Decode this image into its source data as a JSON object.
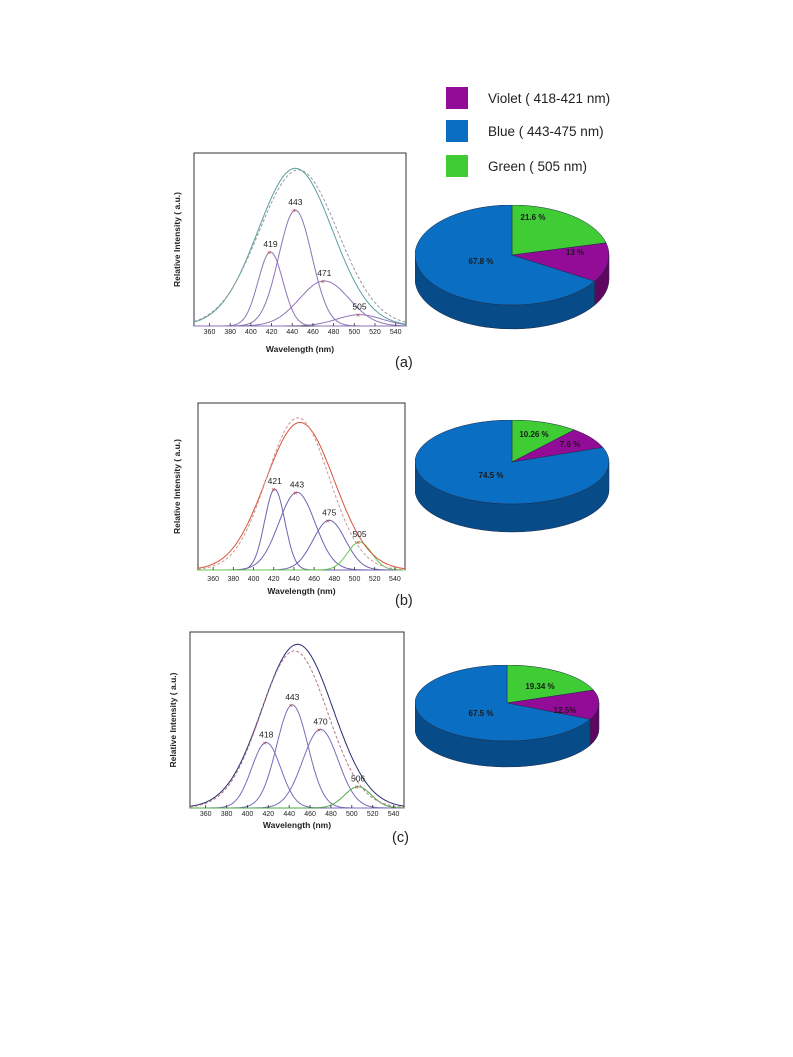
{
  "legend": [
    {
      "label": "Violet ( 418-421 nm)",
      "color": "#930c97"
    },
    {
      "label": "Blue ( 443-475  nm)",
      "color": "#0a6ec3"
    },
    {
      "label": "Green ( 505 nm)",
      "color": "#3fcc35"
    }
  ],
  "panels": [
    {
      "label": "(a)"
    },
    {
      "label": "(b)"
    },
    {
      "label": "(c)"
    }
  ],
  "chart_data": [
    {
      "type": "line",
      "panel": "(a)",
      "xlabel": "Wavelength (nm)",
      "ylabel": "Relative Intensity ( a.u.)",
      "xlim": [
        345,
        550
      ],
      "ylim": [
        0,
        1.0
      ],
      "xticks": [
        "360",
        "380",
        "400",
        "420",
        "440",
        "460",
        "480",
        "500",
        "520",
        "540"
      ],
      "grid": false,
      "peak_labels": [
        "419",
        "443",
        "471",
        "505"
      ],
      "series": [
        {
          "color": "#8c75b8",
          "style": "solid",
          "peaks": [
            {
              "center": 419,
              "height": 0.46,
              "width": 12
            },
            {
              "center": 443,
              "height": 0.72,
              "width": 16
            },
            {
              "center": 471,
              "height": 0.28,
              "width": 24
            },
            {
              "center": 505,
              "height": 0.07,
              "width": 22
            }
          ]
        },
        {
          "color": "#5b9ea3",
          "style": "solid",
          "peaks": [
            {
              "center": 443,
              "height": 0.98,
              "width": 36
            }
          ]
        },
        {
          "color": "#9a9a9a",
          "style": "dashed",
          "peaks": [
            {
              "center": 446,
              "height": 0.97,
              "width": 38
            }
          ]
        }
      ]
    },
    {
      "type": "line",
      "panel": "(b)",
      "xlabel": "Wavelength (nm)",
      "ylabel": "Relative Intensity ( a.u.)",
      "xlim": [
        345,
        550
      ],
      "ylim": [
        0,
        1.0
      ],
      "xticks": [
        "360",
        "380",
        "400",
        "420",
        "440",
        "460",
        "480",
        "500",
        "520",
        "540"
      ],
      "grid": false,
      "peak_labels": [
        "421",
        "443",
        "475",
        "505"
      ],
      "series": [
        {
          "color": "#6f62b0",
          "style": "solid",
          "peaks": [
            {
              "center": 421,
              "height": 0.52,
              "width": 10
            },
            {
              "center": 443,
              "height": 0.5,
              "width": 18
            },
            {
              "center": 475,
              "height": 0.32,
              "width": 16
            }
          ]
        },
        {
          "color": "#63c94f",
          "style": "solid",
          "peaks": [
            {
              "center": 505,
              "height": 0.18,
              "width": 12
            }
          ]
        },
        {
          "color": "#d9533b",
          "style": "solid",
          "peaks": [
            {
              "center": 446,
              "height": 0.95,
              "width": 34
            }
          ]
        },
        {
          "color": "#c79a9a",
          "style": "dashed",
          "peaks": [
            {
              "center": 444,
              "height": 0.98,
              "width": 31
            }
          ]
        }
      ]
    },
    {
      "type": "line",
      "panel": "(c)",
      "xlabel": "Wavelength (nm)",
      "ylabel": "Relative Intensity ( a.u.)",
      "xlim": [
        345,
        550
      ],
      "ylim": [
        0,
        1.0
      ],
      "xticks": [
        "360",
        "380",
        "400",
        "420",
        "440",
        "460",
        "480",
        "500",
        "520",
        "540"
      ],
      "grid": false,
      "peak_labels": [
        "418",
        "443",
        "470",
        "506"
      ],
      "series": [
        {
          "color": "#7a6cba",
          "style": "solid",
          "peaks": [
            {
              "center": 418,
              "height": 0.4,
              "width": 14
            },
            {
              "center": 443,
              "height": 0.63,
              "width": 15
            },
            {
              "center": 470,
              "height": 0.48,
              "width": 17
            }
          ]
        },
        {
          "color": "#4daa4a",
          "style": "solid",
          "peaks": [
            {
              "center": 506,
              "height": 0.13,
              "width": 13
            }
          ]
        },
        {
          "color": "#2b2b6e",
          "style": "solid",
          "peaks": [
            {
              "center": 448,
              "height": 1.0,
              "width": 34
            }
          ]
        },
        {
          "color": "#b07a8a",
          "style": "dashed",
          "peaks": [
            {
              "center": 445,
              "height": 0.96,
              "width": 32
            }
          ]
        }
      ]
    },
    {
      "type": "pie",
      "panel": "(a)",
      "slices": [
        {
          "name": "Green",
          "value": 21.6,
          "label": "21.6 %",
          "color": "#3fcc35",
          "side": "#2a9023"
        },
        {
          "name": "Violet",
          "value": 13,
          "label": "13 %",
          "color": "#930c97",
          "side": "#5e0760"
        },
        {
          "name": "Blue",
          "value": 67.8,
          "label": "67.8 %",
          "color": "#0a6ec3",
          "side": "#074c88"
        }
      ]
    },
    {
      "type": "pie",
      "panel": "(b)",
      "slices": [
        {
          "name": "Green",
          "value": 10.26,
          "label": "10.26 %",
          "color": "#3fcc35",
          "side": "#2a9023"
        },
        {
          "name": "Violet",
          "value": 7.6,
          "label": "7.6 %",
          "color": "#930c97",
          "side": "#5e0760"
        },
        {
          "name": "Blue",
          "value": 74.5,
          "label": "74.5 %",
          "color": "#0a6ec3",
          "side": "#074c88"
        }
      ]
    },
    {
      "type": "pie",
      "panel": "(c)",
      "slices": [
        {
          "name": "Green",
          "value": 19.34,
          "label": "19.34 %",
          "color": "#3fcc35",
          "side": "#2a9023"
        },
        {
          "name": "Violet",
          "value": 12.5,
          "label": "12.5%",
          "color": "#930c97",
          "side": "#5e0760"
        },
        {
          "name": "Blue",
          "value": 67.5,
          "label": "67.5 %",
          "color": "#0a6ec3",
          "side": "#074c88"
        }
      ]
    }
  ]
}
